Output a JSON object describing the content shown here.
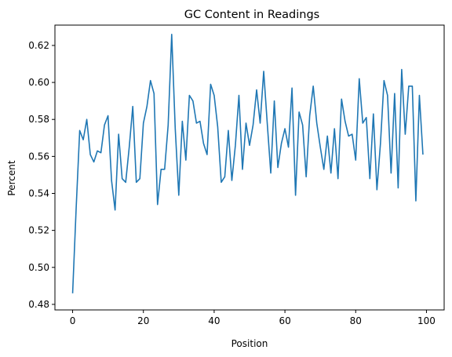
{
  "chart_data": {
    "type": "line",
    "title": "GC Content in Readings",
    "xlabel": "Position",
    "ylabel": "Percent",
    "xlim": [
      -5,
      105
    ],
    "ylim": [
      0.477,
      0.631
    ],
    "xticks": [
      0,
      20,
      40,
      60,
      80,
      100
    ],
    "yticks": [
      0.48,
      0.5,
      0.52,
      0.54,
      0.56,
      0.58,
      0.6,
      0.62
    ],
    "grid": false,
    "series": [
      {
        "color": "#1f77b4",
        "x": [
          0,
          1,
          2,
          3,
          4,
          5,
          6,
          7,
          8,
          9,
          10,
          11,
          12,
          13,
          14,
          15,
          16,
          17,
          18,
          19,
          20,
          21,
          22,
          23,
          24,
          25,
          26,
          27,
          28,
          29,
          30,
          31,
          32,
          33,
          34,
          35,
          36,
          37,
          38,
          39,
          40,
          41,
          42,
          43,
          44,
          45,
          46,
          47,
          48,
          49,
          50,
          51,
          52,
          53,
          54,
          55,
          56,
          57,
          58,
          59,
          60,
          61,
          62,
          63,
          64,
          65,
          66,
          67,
          68,
          69,
          70,
          71,
          72,
          73,
          74,
          75,
          76,
          77,
          78,
          79,
          80,
          81,
          82,
          83,
          84,
          85,
          86,
          87,
          88,
          89,
          90,
          91,
          92,
          93,
          94,
          95,
          96,
          97,
          98,
          99
        ],
        "values": [
          0.486,
          0.532,
          0.574,
          0.569,
          0.58,
          0.561,
          0.557,
          0.563,
          0.562,
          0.577,
          0.582,
          0.547,
          0.531,
          0.572,
          0.548,
          0.546,
          0.565,
          0.587,
          0.546,
          0.548,
          0.578,
          0.587,
          0.601,
          0.594,
          0.534,
          0.553,
          0.553,
          0.577,
          0.626,
          0.575,
          0.539,
          0.579,
          0.558,
          0.593,
          0.59,
          0.578,
          0.579,
          0.567,
          0.561,
          0.599,
          0.593,
          0.576,
          0.546,
          0.549,
          0.574,
          0.547,
          0.566,
          0.593,
          0.553,
          0.578,
          0.566,
          0.577,
          0.596,
          0.578,
          0.606,
          0.578,
          0.551,
          0.59,
          0.554,
          0.567,
          0.575,
          0.565,
          0.597,
          0.539,
          0.584,
          0.577,
          0.549,
          0.582,
          0.598,
          0.578,
          0.565,
          0.553,
          0.571,
          0.551,
          0.575,
          0.548,
          0.591,
          0.579,
          0.571,
          0.572,
          0.558,
          0.602,
          0.578,
          0.581,
          0.548,
          0.583,
          0.542,
          0.567,
          0.601,
          0.593,
          0.551,
          0.594,
          0.543,
          0.607,
          0.572,
          0.598,
          0.598,
          0.536,
          0.593,
          0.561
        ]
      }
    ]
  }
}
